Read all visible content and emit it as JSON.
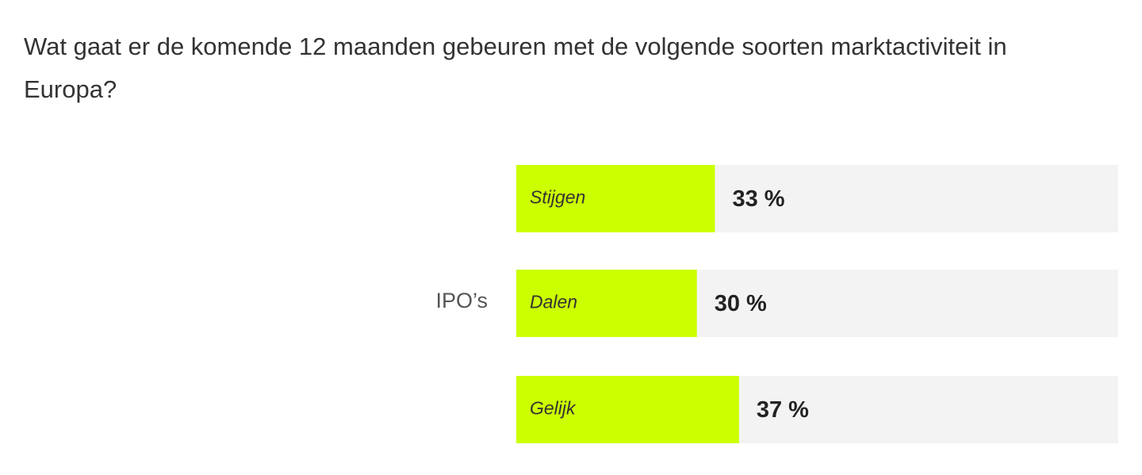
{
  "chart_data": {
    "type": "bar",
    "orientation": "horizontal",
    "title": "Wat gaat er de komende 12 maanden gebeuren met de volgende soorten marktactiviteit in Europa?",
    "group": "IPO’s",
    "categories": [
      "Stijgen",
      "Dalen",
      "Gelijk"
    ],
    "values": [
      33,
      30,
      37
    ],
    "value_labels": [
      "33 %",
      "30 %",
      "37 %"
    ],
    "color": "#ccff00",
    "track_color": "#f3f3f3",
    "xlim": [
      0,
      100
    ]
  }
}
